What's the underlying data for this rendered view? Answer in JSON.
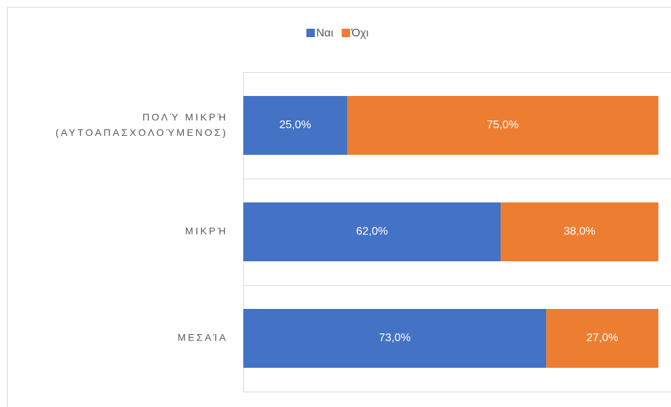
{
  "chart_data": {
    "type": "stacked-bar-horizontal",
    "categories": [
      "ΠΟΛΎ ΜΙΚΡΉ\n(ΑΥΤΟΑΠΑΣΧΟΛΟΎΜΕΝΟΣ)",
      "ΜΙΚΡΉ",
      "ΜΕΣΑΊΑ"
    ],
    "series": [
      {
        "name": "Ναι",
        "color": "#4472c4",
        "values": [
          25,
          62,
          73
        ],
        "value_labels": [
          "25,0%",
          "62,0%",
          "73,0%"
        ]
      },
      {
        "name": "Όχι",
        "color": "#ed7d31",
        "values": [
          75,
          38,
          27
        ],
        "value_labels": [
          "75,0%",
          "38,0%",
          "27,0%"
        ]
      }
    ],
    "xlim": [
      0,
      100
    ],
    "grid": true,
    "legend": "top"
  }
}
